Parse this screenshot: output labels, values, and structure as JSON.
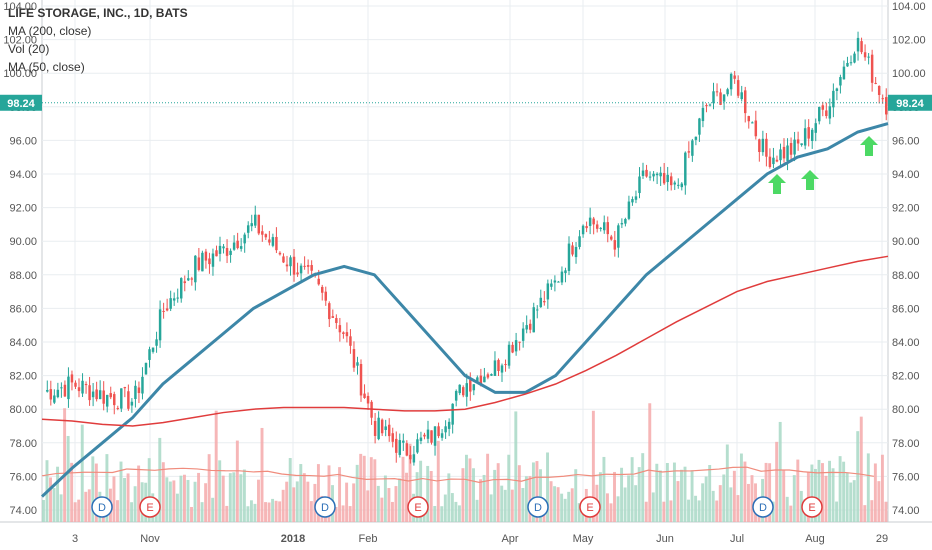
{
  "chart_data": {
    "type": "candlestick",
    "title": "LIFE STORAGE, INC., 1D, BATS",
    "indicators": [
      "MA (200, close)",
      "Vol (20)",
      "MA (50, close)"
    ],
    "last_price": "98.24",
    "ylim": [
      73.5,
      104.5
    ],
    "y_ticks": [
      "74.00",
      "76.00",
      "78.00",
      "80.00",
      "82.00",
      "84.00",
      "86.00",
      "88.00",
      "90.00",
      "92.00",
      "94.00",
      "96.00",
      "98.00",
      "100.00",
      "102.00",
      "104.00"
    ],
    "x_ticks": [
      "3",
      "Nov",
      "2018",
      "Feb",
      "Apr",
      "May",
      "Jun",
      "Jul",
      "Aug",
      "29"
    ],
    "events": [
      {
        "label": "D",
        "date": "Oct 2017"
      },
      {
        "label": "E",
        "date": "Nov 2017"
      },
      {
        "label": "D",
        "date": "Jan 2018"
      },
      {
        "label": "E",
        "date": "Feb 2018"
      },
      {
        "label": "D",
        "date": "Apr 2018"
      },
      {
        "label": "E",
        "date": "May 2018"
      },
      {
        "label": "D",
        "date": "Jul 2018"
      },
      {
        "label": "E",
        "date": "Aug 2018"
      }
    ],
    "price_path": [
      [
        "Sep 2017",
        81.0
      ],
      [
        "Oct 2017",
        81.5
      ],
      [
        "Oct 2017 late",
        80.8
      ],
      [
        "Nov 2017 early",
        80.5
      ],
      [
        "Nov 2017",
        86.0
      ],
      [
        "Nov 2017 late",
        88.5
      ],
      [
        "Dec 2017",
        89.5
      ],
      [
        "Dec 2017 late",
        91.0
      ],
      [
        "Jan 2018",
        89.0
      ],
      [
        "Jan 2018 late",
        87.5
      ],
      [
        "Feb 2018",
        84.5
      ],
      [
        "Feb 2018 mid",
        79.0
      ],
      [
        "Feb 2018 late",
        77.5
      ],
      [
        "Mar 2018",
        78.5
      ],
      [
        "Mar 2018 late",
        81.5
      ],
      [
        "Apr 2018",
        82.5
      ],
      [
        "Apr 2018 late",
        85.0
      ],
      [
        "May 2018",
        87.5
      ],
      [
        "May 2018 late",
        91.5
      ],
      [
        "Jun 2018",
        90.0
      ],
      [
        "Jun 2018 mid",
        94.0
      ],
      [
        "Jun 2018 late",
        93.0
      ],
      [
        "Jul 2018",
        98.0
      ],
      [
        "Jul 2018 mid",
        99.5
      ],
      [
        "Jul 2018 late",
        95.0
      ],
      [
        "Aug 2018",
        95.5
      ],
      [
        "Aug 2018 mid",
        98.0
      ],
      [
        "Aug 2018 late",
        102.0
      ],
      [
        "Sep 2018",
        98.2
      ]
    ],
    "series": [
      {
        "name": "MA (50, close)",
        "color": "#3d87a8",
        "values": [
          74.8,
          76.5,
          78.0,
          79.5,
          81.5,
          83.0,
          84.5,
          86.0,
          87.0,
          88.0,
          88.5,
          88.0,
          86.0,
          84.0,
          82.0,
          81.0,
          81.0,
          82.0,
          84.0,
          86.0,
          88.0,
          89.5,
          91.0,
          92.5,
          94.0,
          95.0,
          95.5,
          96.5,
          97.0
        ]
      },
      {
        "name": "MA (200, close)",
        "color": "#e03c3c",
        "values": [
          79.4,
          79.3,
          79.1,
          79.0,
          79.2,
          79.5,
          79.8,
          80.0,
          80.1,
          80.1,
          80.1,
          80.0,
          79.9,
          79.9,
          80.0,
          80.4,
          80.9,
          81.5,
          82.3,
          83.2,
          84.2,
          85.2,
          86.1,
          87.0,
          87.6,
          88.0,
          88.4,
          88.8,
          89.1
        ]
      }
    ],
    "markers": [
      {
        "type": "up-arrow",
        "color": "#4cd964",
        "date": "Jul 2018 late"
      },
      {
        "type": "up-arrow",
        "color": "#4cd964",
        "date": "Aug 2018"
      },
      {
        "type": "up-arrow",
        "color": "#4cd964",
        "date": "Sep 2018"
      }
    ],
    "colors": {
      "up": "#26a69a",
      "down": "#ef5350",
      "vol_up": "#a8d8c6",
      "vol_down": "#f4a9aa",
      "grid": "#e9edf0"
    }
  }
}
